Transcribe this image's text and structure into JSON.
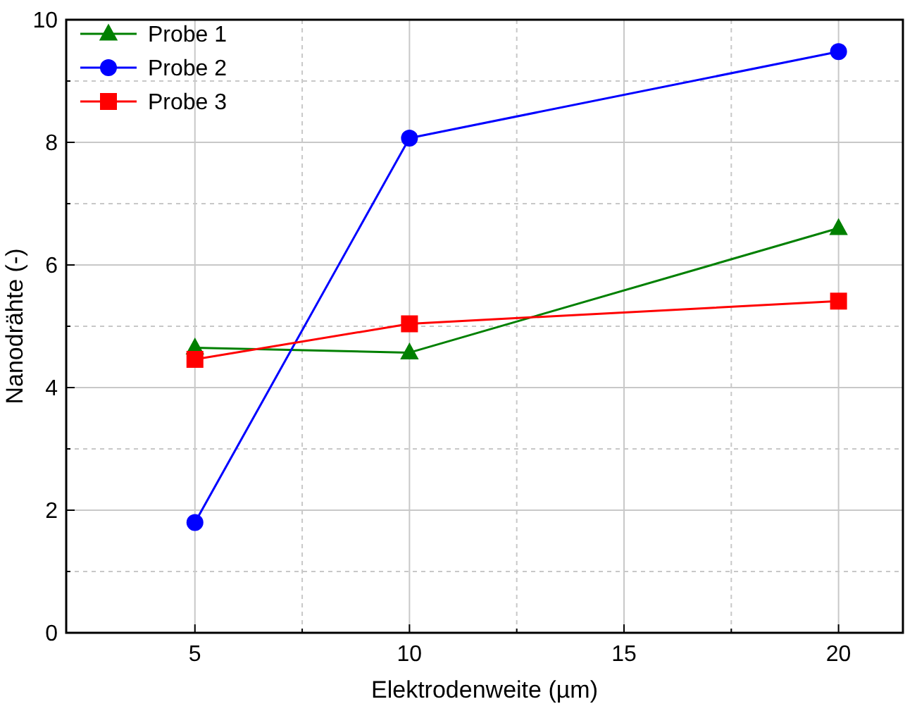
{
  "chart_data": {
    "type": "line",
    "xlabel": "Elektrodenweite (µm)",
    "ylabel": "Nanodrähte (-)",
    "x": [
      5,
      10,
      20
    ],
    "series": [
      {
        "name": "Probe 1",
        "color": "#008000",
        "values": [
          4.65,
          4.57,
          6.6
        ],
        "marker": "triangle"
      },
      {
        "name": "Probe 2",
        "color": "#0000ff",
        "values": [
          1.8,
          8.07,
          9.48
        ],
        "marker": "circle"
      },
      {
        "name": "Probe 3",
        "color": "#ff0000",
        "values": [
          4.46,
          5.04,
          5.41
        ],
        "marker": "square"
      }
    ],
    "xlim": [
      2,
      21.5
    ],
    "xticks": [
      5,
      {
        "value": 7.5,
        "label": null
      },
      10,
      {
        "value": 12.5,
        "label": null
      },
      15,
      {
        "value": 17.5,
        "label": null
      },
      20
    ],
    "ylim": [
      0,
      10
    ],
    "yticks": [
      0,
      {
        "value": 1,
        "label": null
      },
      2,
      {
        "value": 3,
        "label": null
      },
      4,
      {
        "value": 5,
        "label": null
      },
      6,
      {
        "value": 7,
        "label": null
      },
      8,
      {
        "value": 9,
        "label": null
      },
      10
    ],
    "grid": true,
    "legend": "top left"
  }
}
